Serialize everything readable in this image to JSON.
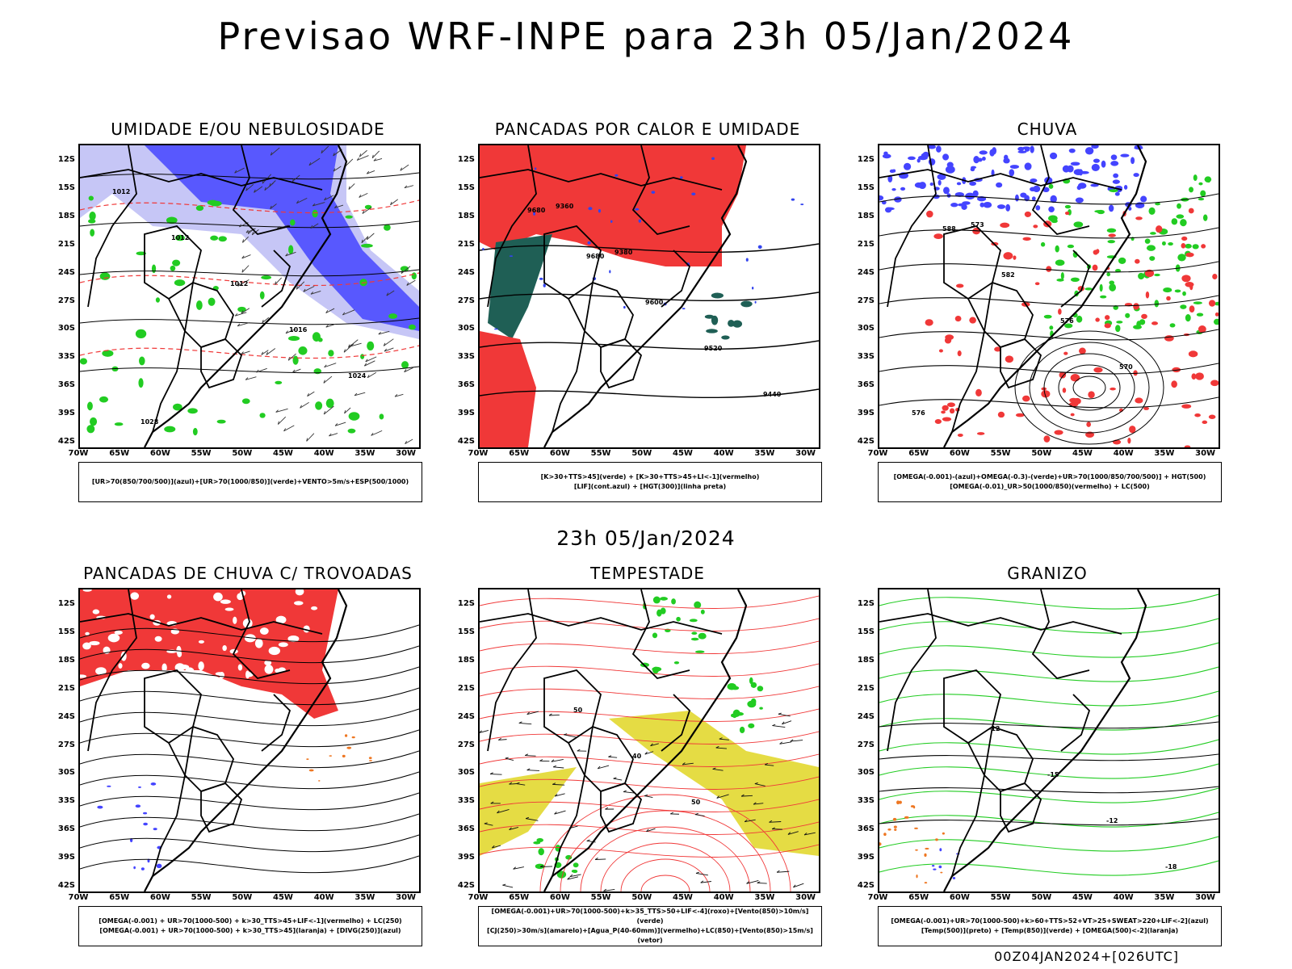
{
  "header": {
    "title": "Previsao WRF-INPE  para 23h 05/Jan/2024",
    "subtitle": "23h 05/Jan/2024",
    "footer": "00Z04JAN2024+[026UTC]"
  },
  "axes": {
    "lat_labels": [
      "12S",
      "15S",
      "18S",
      "21S",
      "24S",
      "27S",
      "30S",
      "33S",
      "36S",
      "39S",
      "42S"
    ],
    "lon_labels": [
      "70W",
      "65W",
      "60W",
      "55W",
      "50W",
      "45W",
      "40W",
      "35W",
      "30W"
    ]
  },
  "panels": [
    {
      "title": "UMIDADE E/OU NEBULOSIDADE",
      "legend": [
        "[UR>70(850/700/500)](azul)+[UR>70(1000/850)](verde)+VENTO>5m/s+ESP(500/1000)"
      ],
      "labels": [
        "1012",
        "1012",
        "1012",
        "1016",
        "1024",
        "1028"
      ]
    },
    {
      "title": "PANCADAS POR CALOR E UMIDADE",
      "legend": [
        "[K>30+TTS>45](verde) + [K>30+TTS>45+LI<-1](vermelho)",
        "[LIF](cont.azul) + [HGT(300)](linha preta)"
      ],
      "labels": [
        "9680",
        "9680",
        "9600",
        "9520",
        "9440",
        "9360",
        "9380"
      ]
    },
    {
      "title": "CHUVA",
      "legend": [
        "[OMEGA(-0.001)-(azul)+OMEGA(-0.3)-(verde)+UR>70(1000/850/700/500)] + HGT(500)",
        "[OMEGA(-0.01)_UR>50(1000/850)(vermelho) + LC(500)"
      ],
      "labels": [
        "588",
        "582",
        "576",
        "570",
        "576",
        "573"
      ]
    },
    {
      "title": "PANCADAS DE CHUVA C/ TROVOADAS",
      "legend": [
        "[OMEGA(-0.001) + UR>70(1000-500) + k>30_TTS>45+LIF<-1](vermelho) + LC(250)",
        "[OMEGA(-0.001) + UR>70(1000-500) + k>30_TTS>45](laranja) + [DIVG(250)](azul)"
      ],
      "labels": []
    },
    {
      "title": "TEMPESTADE",
      "legend": [
        "[OMEGA(-0.001)+UR>70(1000-500)+k>35_TTS>50+LIF<-4](roxo)+[Vento(850)>10m/s](verde)",
        "[CJ(250)>30m/s](amarelo)+[Agua_P(40-60mm)](vermelho)+LC(850)+[Vento(850)>15m/s](vetor)"
      ],
      "labels": [
        "50",
        "40",
        "50"
      ]
    },
    {
      "title": "GRANIZO",
      "legend": [
        "[OMEGA(-0.001)+UR>70(1000-500)+k>60+TTS>52+VT>25+SWEAT>220+LIF<-2](azul)",
        "[Temp(500)](preto) + [Temp(850)](verde) + [OMEGA(500)<-2](laranja)"
      ],
      "labels": [
        "-12",
        "-15",
        "-12",
        "-18"
      ]
    }
  ],
  "colors": {
    "blue": "#4444ff",
    "lightblue": "#b8b8f4",
    "green": "#22cc22",
    "red": "#f03838",
    "darkteal": "#1f5f55",
    "yellow": "#e2d830",
    "orange": "#ee7722"
  }
}
